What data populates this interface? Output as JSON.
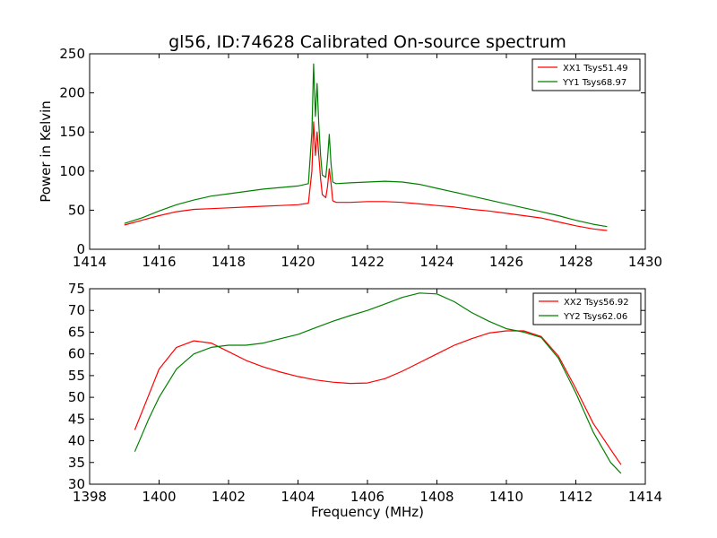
{
  "chart_data": [
    {
      "type": "line",
      "title": "gl56, ID:74628 Calibrated On-source spectrum",
      "xlabel": "",
      "ylabel": "Power in Kelvin",
      "xlim": [
        1414,
        1430
      ],
      "ylim": [
        0,
        250
      ],
      "xticks": [
        "1414",
        "1416",
        "1418",
        "1420",
        "1422",
        "1424",
        "1426",
        "1428",
        "1430"
      ],
      "yticks": [
        "0",
        "50",
        "100",
        "150",
        "200",
        "250"
      ],
      "legend_position": "top-right",
      "series": [
        {
          "name": "XX1 Tsys51.49",
          "color": "#ff0000",
          "x": [
            1415.0,
            1415.5,
            1416.0,
            1416.5,
            1417.0,
            1417.5,
            1418.0,
            1418.5,
            1419.0,
            1419.5,
            1420.0,
            1420.3,
            1420.4,
            1420.45,
            1420.5,
            1420.55,
            1420.6,
            1420.65,
            1420.7,
            1420.8,
            1420.85,
            1420.9,
            1420.95,
            1421.0,
            1421.1,
            1421.5,
            1422.0,
            1422.5,
            1423.0,
            1423.5,
            1424.0,
            1424.5,
            1425.0,
            1425.5,
            1426.0,
            1426.5,
            1427.0,
            1427.5,
            1428.0,
            1428.5,
            1428.9
          ],
          "y": [
            31,
            37,
            43,
            48,
            51,
            52,
            53,
            54,
            55,
            56,
            57,
            59,
            100,
            163,
            120,
            150,
            120,
            90,
            70,
            66,
            80,
            103,
            85,
            62,
            60,
            60,
            61,
            61,
            60,
            58,
            56,
            54,
            51,
            49,
            46,
            43,
            40,
            35,
            30,
            26,
            24
          ]
        },
        {
          "name": "YY1 Tsys68.97",
          "color": "#008000",
          "x": [
            1415.0,
            1415.5,
            1416.0,
            1416.5,
            1417.0,
            1417.5,
            1418.0,
            1418.5,
            1419.0,
            1419.5,
            1420.0,
            1420.3,
            1420.4,
            1420.45,
            1420.5,
            1420.55,
            1420.6,
            1420.65,
            1420.7,
            1420.8,
            1420.85,
            1420.9,
            1420.95,
            1421.0,
            1421.1,
            1421.5,
            1422.0,
            1422.5,
            1423.0,
            1423.5,
            1424.0,
            1424.5,
            1425.0,
            1425.5,
            1426.0,
            1426.5,
            1427.0,
            1427.5,
            1428.0,
            1428.5,
            1428.9
          ],
          "y": [
            33,
            40,
            49,
            57,
            63,
            68,
            71,
            74,
            77,
            79,
            81,
            84,
            150,
            237,
            170,
            212,
            160,
            120,
            95,
            92,
            115,
            147,
            110,
            86,
            84,
            85,
            86,
            87,
            86,
            83,
            78,
            73,
            68,
            63,
            58,
            53,
            48,
            43,
            37,
            32,
            29
          ]
        }
      ]
    },
    {
      "type": "line",
      "title": "",
      "xlabel": "Frequency (MHz)",
      "ylabel": "",
      "xlim": [
        1398,
        1414
      ],
      "ylim": [
        30,
        75
      ],
      "xticks": [
        "1398",
        "1400",
        "1402",
        "1404",
        "1406",
        "1408",
        "1410",
        "1412",
        "1414"
      ],
      "yticks": [
        "30",
        "35",
        "40",
        "45",
        "50",
        "55",
        "60",
        "65",
        "70",
        "75"
      ],
      "legend_position": "top-right",
      "series": [
        {
          "name": "XX2 Tsys56.92",
          "color": "#ff0000",
          "x": [
            1399.3,
            1399.7,
            1400.0,
            1400.5,
            1401.0,
            1401.5,
            1402.0,
            1402.5,
            1403.0,
            1403.5,
            1404.0,
            1404.5,
            1405.0,
            1405.5,
            1406.0,
            1406.5,
            1407.0,
            1407.5,
            1408.0,
            1408.5,
            1409.0,
            1409.5,
            1410.0,
            1410.5,
            1411.0,
            1411.5,
            1412.0,
            1412.5,
            1413.0,
            1413.3
          ],
          "y": [
            42.5,
            50.5,
            56.5,
            61.5,
            63,
            62.5,
            60.5,
            58.5,
            57,
            55.8,
            54.8,
            54,
            53.5,
            53.2,
            53.3,
            54.3,
            56,
            58,
            60,
            62,
            63.5,
            64.8,
            65.3,
            65.3,
            64,
            59.5,
            52,
            44,
            38,
            34.5
          ]
        },
        {
          "name": "YY2 Tsys62.06",
          "color": "#008000",
          "x": [
            1399.3,
            1399.7,
            1400.0,
            1400.5,
            1401.0,
            1401.5,
            1402.0,
            1402.5,
            1403.0,
            1403.5,
            1404.0,
            1404.5,
            1405.0,
            1405.5,
            1406.0,
            1406.5,
            1407.0,
            1407.5,
            1408.0,
            1408.5,
            1409.0,
            1409.5,
            1410.0,
            1410.5,
            1411.0,
            1411.5,
            1412.0,
            1412.5,
            1413.0,
            1413.3
          ],
          "y": [
            37.5,
            45,
            50,
            56.5,
            60,
            61.5,
            62,
            62,
            62.5,
            63.5,
            64.5,
            66,
            67.5,
            68.8,
            70,
            71.5,
            73,
            74,
            73.8,
            72,
            69.5,
            67.5,
            65.8,
            65,
            63.8,
            59,
            51,
            42,
            35,
            32.5
          ]
        }
      ]
    }
  ]
}
